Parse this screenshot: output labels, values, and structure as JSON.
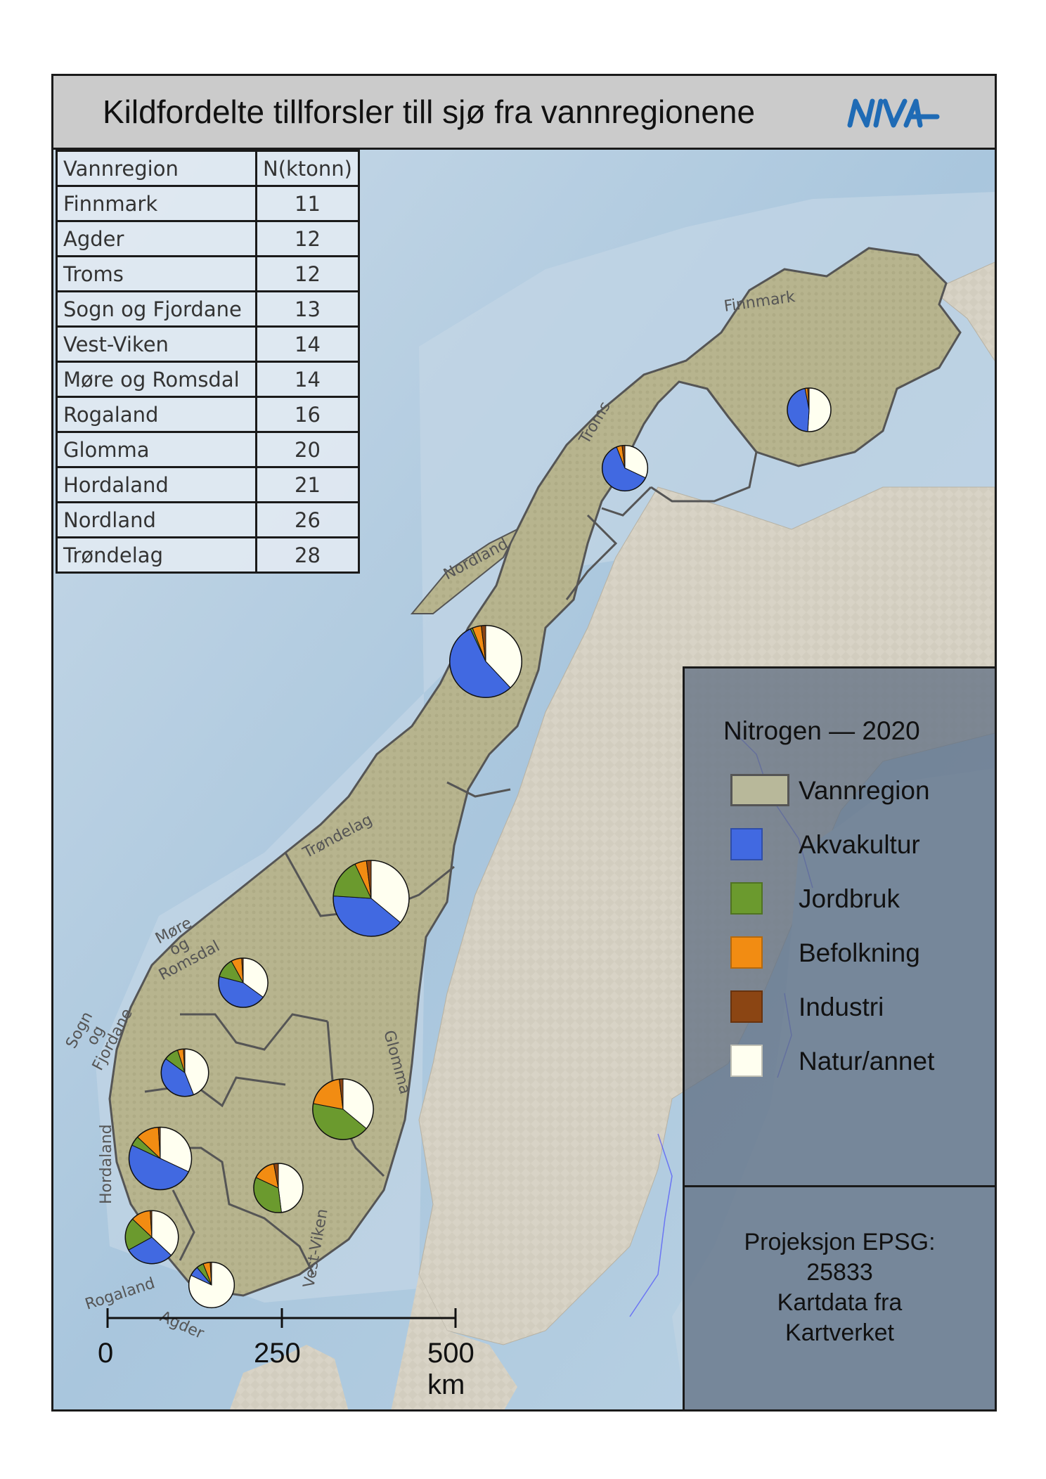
{
  "title": "Kildfordelte tillforsler till sjø fra vannregionene",
  "logo": {
    "text": "NIVA",
    "color": "#1f6bb5"
  },
  "table": {
    "headers": [
      "Vannregion",
      "N(ktonn)"
    ],
    "rows": [
      [
        "Finnmark",
        "11"
      ],
      [
        "Agder",
        "12"
      ],
      [
        "Troms",
        "12"
      ],
      [
        "Sogn og Fjordane",
        "13"
      ],
      [
        "Vest-Viken",
        "14"
      ],
      [
        "Møre og Romsdal",
        "14"
      ],
      [
        "Rogaland",
        "16"
      ],
      [
        "Glomma",
        "20"
      ],
      [
        "Hordaland",
        "21"
      ],
      [
        "Nordland",
        "26"
      ],
      [
        "Trøndelag",
        "28"
      ]
    ]
  },
  "region_labels": [
    "Finnmark",
    "Troms",
    "Nordland",
    "Trøndelag",
    "Møre og Romsdal",
    "Sogn og Fjordane",
    "Glomma",
    "Hordaland",
    "Vest-Viken",
    "Rogaland",
    "Agder"
  ],
  "legend": {
    "title": "Nitrogen — 2020",
    "items": [
      {
        "label": "Vannregion",
        "color": "#b8b89a",
        "outlined": true
      },
      {
        "label": "Akvakultur",
        "color": "#4169e1"
      },
      {
        "label": "Jordbruk",
        "color": "#6b9a2e"
      },
      {
        "label": "Befolkning",
        "color": "#f28c12"
      },
      {
        "label": "Industri",
        "color": "#8b4513"
      },
      {
        "label": "Natur/annet",
        "color": "#fffff0"
      }
    ]
  },
  "credits": [
    "Projeksjon EPSG:",
    "25833",
    "Kartdata fra",
    "Kartverket"
  ],
  "scalebar": {
    "labels": [
      "0",
      "250",
      "500 km"
    ]
  },
  "pies": [
    {
      "region": "Finnmark",
      "total_ktonn": 11,
      "shares": {
        "Akvakultur": 0.46,
        "Jordbruk": 0.0,
        "Befolkning": 0.02,
        "Industri": 0.01,
        "Natur/annet": 0.51
      }
    },
    {
      "region": "Troms",
      "total_ktonn": 12,
      "shares": {
        "Akvakultur": 0.62,
        "Jordbruk": 0.0,
        "Befolkning": 0.04,
        "Industri": 0.02,
        "Natur/annet": 0.32
      }
    },
    {
      "region": "Nordland",
      "total_ktonn": 26,
      "shares": {
        "Akvakultur": 0.55,
        "Jordbruk": 0.01,
        "Befolkning": 0.04,
        "Industri": 0.02,
        "Natur/annet": 0.38
      }
    },
    {
      "region": "Trøndelag",
      "total_ktonn": 28,
      "shares": {
        "Akvakultur": 0.4,
        "Jordbruk": 0.17,
        "Befolkning": 0.05,
        "Industri": 0.02,
        "Natur/annet": 0.36
      }
    },
    {
      "region": "Møre og Romsdal",
      "total_ktonn": 14,
      "shares": {
        "Akvakultur": 0.44,
        "Jordbruk": 0.13,
        "Befolkning": 0.07,
        "Industri": 0.01,
        "Natur/annet": 0.35
      }
    },
    {
      "region": "Sogn og Fjordane",
      "total_ktonn": 13,
      "shares": {
        "Akvakultur": 0.41,
        "Jordbruk": 0.1,
        "Befolkning": 0.04,
        "Industri": 0.01,
        "Natur/annet": 0.44
      }
    },
    {
      "region": "Hordaland",
      "total_ktonn": 21,
      "shares": {
        "Akvakultur": 0.5,
        "Jordbruk": 0.05,
        "Befolkning": 0.12,
        "Industri": 0.01,
        "Natur/annet": 0.32
      }
    },
    {
      "region": "Glomma",
      "total_ktonn": 20,
      "shares": {
        "Akvakultur": 0.0,
        "Jordbruk": 0.42,
        "Befolkning": 0.2,
        "Industri": 0.02,
        "Natur/annet": 0.36
      }
    },
    {
      "region": "Vest-Viken",
      "total_ktonn": 14,
      "shares": {
        "Akvakultur": 0.0,
        "Jordbruk": 0.34,
        "Befolkning": 0.15,
        "Industri": 0.03,
        "Natur/annet": 0.48
      }
    },
    {
      "region": "Rogaland",
      "total_ktonn": 16,
      "shares": {
        "Akvakultur": 0.3,
        "Jordbruk": 0.2,
        "Befolkning": 0.12,
        "Industri": 0.01,
        "Natur/annet": 0.37
      }
    },
    {
      "region": "Agder",
      "total_ktonn": 12,
      "shares": {
        "Akvakultur": 0.07,
        "Jordbruk": 0.05,
        "Befolkning": 0.05,
        "Industri": 0.01,
        "Natur/annet": 0.82
      }
    }
  ]
}
